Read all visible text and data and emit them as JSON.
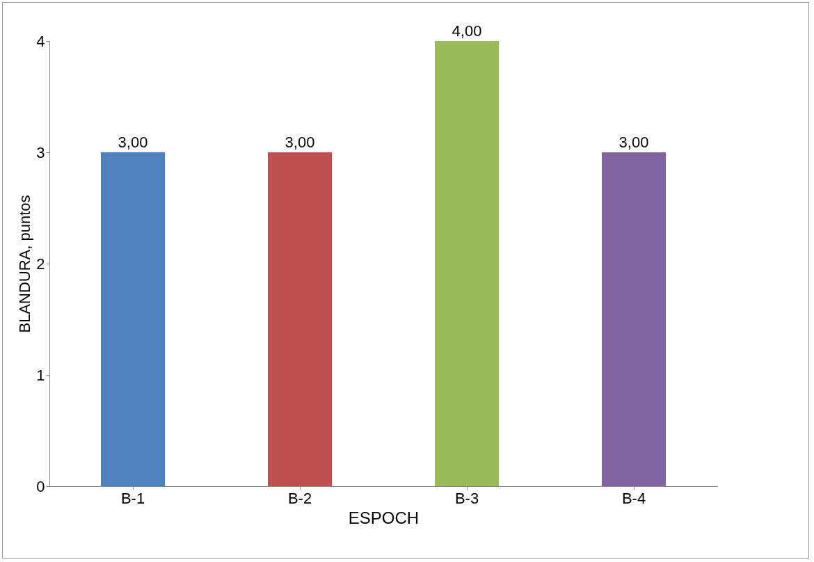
{
  "chart_data": {
    "type": "bar",
    "xlabel": "ESPOCH",
    "ylabel": "BLANDURA, puntos",
    "categories": [
      "B-1",
      "B-2",
      "B-3",
      "B-4"
    ],
    "values": [
      3,
      3,
      4,
      3
    ],
    "colors": [
      "#4f81bd",
      "#c0504d",
      "#9bbb59",
      "#8064a2"
    ],
    "value_labels": [
      "3,00",
      "3,00",
      "4,00",
      "3,00"
    ],
    "ylim": [
      0,
      4
    ],
    "yticks": [
      0,
      1,
      2,
      3,
      4
    ]
  }
}
